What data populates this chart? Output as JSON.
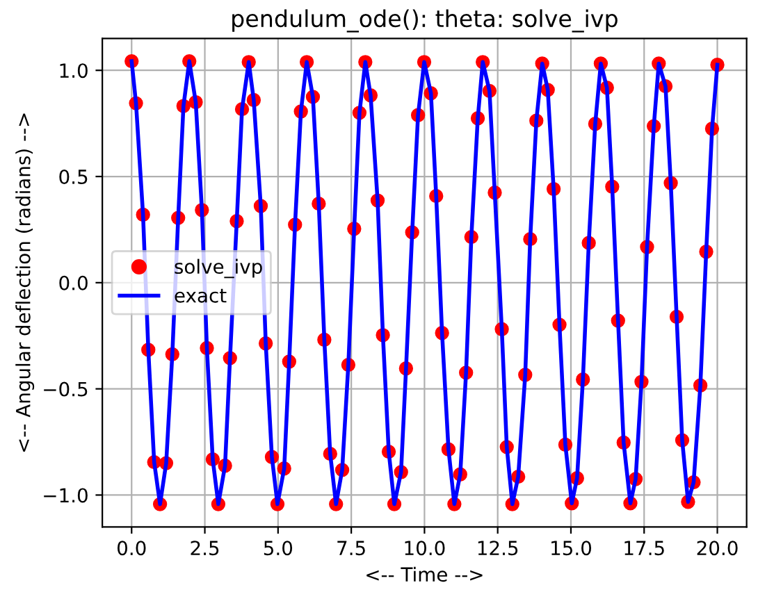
{
  "chart_data": {
    "type": "line",
    "title": "pendulum_ode(): theta: solve_ivp",
    "xlabel": "<-- Time -->",
    "ylabel": "<-- Angular deflection (radians) -->",
    "x": [
      0,
      0.15,
      0.39,
      0.57,
      0.77,
      0.97,
      1.18,
      1.39,
      1.59,
      1.77,
      1.97,
      2.19,
      2.4,
      2.57,
      2.77,
      2.96,
      3.19,
      3.36,
      3.59,
      3.77,
      4.0,
      4.17,
      4.41,
      4.58,
      4.79,
      4.98,
      5.21,
      5.38,
      5.58,
      5.78,
      5.98,
      6.19,
      6.39,
      6.58,
      6.78,
      6.98,
      7.19,
      7.4,
      7.6,
      7.78,
      7.98,
      8.16,
      8.4,
      8.58,
      8.78,
      8.97,
      9.2,
      9.37,
      9.58,
      9.78,
      9.99,
      10.22,
      10.4,
      10.6,
      10.82,
      11.02,
      11.22,
      11.42,
      11.6,
      11.82,
      11.99,
      12.22,
      12.4,
      12.64,
      12.81,
      13.0,
      13.2,
      13.44,
      13.61,
      13.82,
      14.02,
      14.21,
      14.41,
      14.61,
      14.81,
      15.03,
      15.21,
      15.41,
      15.61,
      15.83,
      16.02,
      16.23,
      16.41,
      16.61,
      16.8,
      17.03,
      17.21,
      17.41,
      17.6,
      17.83,
      18.0,
      18.23,
      18.41,
      18.61,
      18.8,
      19.0,
      19.19,
      19.42,
      19.62,
      19.82,
      20.0
    ],
    "series": [
      {
        "name": "solve_ivp",
        "type": "scatter",
        "marker": "circle",
        "color": "#ff0000",
        "values": [
          1.043,
          0.845,
          0.32,
          -0.316,
          -0.845,
          -1.043,
          -0.85,
          -0.337,
          0.305,
          0.832,
          1.043,
          0.85,
          0.342,
          -0.308,
          -0.832,
          -1.043,
          -0.862,
          -0.355,
          0.29,
          0.817,
          1.039,
          0.86,
          0.361,
          -0.286,
          -0.821,
          -1.043,
          -0.875,
          -0.372,
          0.273,
          0.806,
          1.039,
          0.875,
          0.372,
          -0.269,
          -0.806,
          -1.043,
          -0.882,
          -0.387,
          0.254,
          0.8,
          1.039,
          0.882,
          0.387,
          -0.247,
          -0.796,
          -1.043,
          -0.892,
          -0.404,
          0.237,
          0.789,
          1.039,
          0.892,
          0.408,
          -0.237,
          -0.785,
          -1.043,
          -0.903,
          -0.424,
          0.215,
          0.774,
          1.039,
          0.903,
          0.424,
          -0.219,
          -0.774,
          -1.043,
          -0.914,
          -0.434,
          0.205,
          0.763,
          1.032,
          0.908,
          0.441,
          -0.198,
          -0.763,
          -1.039,
          -0.921,
          -0.456,
          0.187,
          0.748,
          1.032,
          0.918,
          0.452,
          -0.179,
          -0.753,
          -1.039,
          -0.925,
          -0.467,
          0.168,
          0.737,
          1.032,
          0.925,
          0.469,
          -0.161,
          -0.742,
          -1.032,
          -0.94,
          -0.484,
          0.146,
          0.725,
          1.026
        ]
      },
      {
        "name": "exact",
        "marker": "none",
        "line_style": "solid",
        "color": "#0000ff",
        "values": [
          1.043,
          0.845,
          0.32,
          -0.316,
          -0.845,
          -1.043,
          -0.85,
          -0.337,
          0.305,
          0.832,
          1.043,
          0.85,
          0.342,
          -0.308,
          -0.832,
          -1.043,
          -0.862,
          -0.355,
          0.29,
          0.817,
          1.039,
          0.86,
          0.361,
          -0.286,
          -0.821,
          -1.043,
          -0.875,
          -0.372,
          0.273,
          0.806,
          1.039,
          0.875,
          0.372,
          -0.269,
          -0.806,
          -1.043,
          -0.882,
          -0.387,
          0.254,
          0.8,
          1.039,
          0.882,
          0.387,
          -0.247,
          -0.796,
          -1.043,
          -0.892,
          -0.404,
          0.237,
          0.789,
          1.039,
          0.892,
          0.408,
          -0.237,
          -0.785,
          -1.043,
          -0.903,
          -0.424,
          0.215,
          0.774,
          1.039,
          0.903,
          0.424,
          -0.219,
          -0.774,
          -1.043,
          -0.914,
          -0.434,
          0.205,
          0.763,
          1.032,
          0.908,
          0.441,
          -0.198,
          -0.763,
          -1.039,
          -0.921,
          -0.456,
          0.187,
          0.748,
          1.032,
          0.918,
          0.452,
          -0.179,
          -0.753,
          -1.039,
          -0.925,
          -0.467,
          0.168,
          0.737,
          1.032,
          0.925,
          0.469,
          -0.161,
          -0.742,
          -1.032,
          -0.94,
          -0.484,
          0.146,
          0.725,
          1.026
        ]
      }
    ],
    "xlim": [
      -1,
      21
    ],
    "ylim": [
      -1.15,
      1.15
    ],
    "xticks": [
      {
        "value": 0,
        "label": "0.0"
      },
      {
        "value": 2.5,
        "label": "2.5"
      },
      {
        "value": 5,
        "label": "5.0"
      },
      {
        "value": 7.5,
        "label": "7.5"
      },
      {
        "value": 10,
        "label": "10.0"
      },
      {
        "value": 12.5,
        "label": "12.5"
      },
      {
        "value": 15,
        "label": "15.0"
      },
      {
        "value": 17.5,
        "label": "17.5"
      },
      {
        "value": 20,
        "label": "20.0"
      }
    ],
    "yticks": [
      {
        "value": -1,
        "label": "−1.0"
      },
      {
        "value": -0.5,
        "label": "−0.5"
      },
      {
        "value": 0,
        "label": "0.0"
      },
      {
        "value": 0.5,
        "label": "0.5"
      },
      {
        "value": 1,
        "label": "1.0"
      }
    ],
    "grid": true,
    "legend": "center left"
  }
}
